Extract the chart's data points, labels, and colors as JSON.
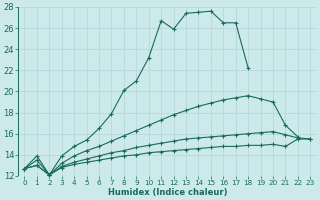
{
  "xlabel": "Humidex (Indice chaleur)",
  "bg_color": "#cce9ec",
  "grid_color": "#b8d8db",
  "line_color": "#1a6b5a",
  "xlim": [
    -0.5,
    23.5
  ],
  "ylim": [
    12,
    28
  ],
  "xticks": [
    0,
    1,
    2,
    3,
    4,
    5,
    6,
    7,
    8,
    9,
    10,
    11,
    12,
    13,
    14,
    15,
    16,
    17,
    18,
    19,
    20,
    21,
    22,
    23
  ],
  "yticks": [
    12,
    14,
    16,
    18,
    20,
    22,
    24,
    26,
    28
  ],
  "series": [
    {
      "x": [
        0,
        1,
        2,
        3,
        4,
        5,
        6,
        7,
        8,
        9,
        10,
        11,
        12,
        13,
        14,
        15,
        16,
        17,
        18
      ],
      "y": [
        12.7,
        13.9,
        12.1,
        13.9,
        14.8,
        15.4,
        16.5,
        17.9,
        20.1,
        21.0,
        23.2,
        26.7,
        25.9,
        27.4,
        27.5,
        27.6,
        26.5,
        26.5,
        22.2
      ]
    },
    {
      "x": [
        0,
        1,
        2,
        3,
        4,
        5,
        6,
        7,
        8,
        9,
        10,
        11,
        12,
        13,
        14,
        15,
        16,
        17,
        18,
        19,
        20,
        21,
        22
      ],
      "y": [
        12.7,
        13.5,
        12.1,
        13.2,
        13.9,
        14.4,
        14.8,
        15.3,
        15.8,
        16.3,
        16.8,
        17.3,
        17.8,
        18.2,
        18.6,
        18.9,
        19.2,
        19.4,
        19.6,
        19.3,
        19.0,
        16.8,
        15.7
      ]
    },
    {
      "x": [
        0,
        1,
        2,
        3,
        4,
        5,
        6,
        7,
        8,
        9,
        10,
        11,
        12,
        13,
        14,
        15,
        16,
        17,
        18,
        19,
        20,
        21,
        22,
        23
      ],
      "y": [
        12.7,
        13.0,
        12.1,
        12.9,
        13.3,
        13.6,
        13.9,
        14.2,
        14.4,
        14.7,
        14.9,
        15.1,
        15.3,
        15.5,
        15.6,
        15.7,
        15.8,
        15.9,
        16.0,
        16.1,
        16.2,
        15.9,
        15.6,
        15.5
      ]
    },
    {
      "x": [
        0,
        1,
        2,
        3,
        4,
        5,
        6,
        7,
        8,
        9,
        10,
        11,
        12,
        13,
        14,
        15,
        16,
        17,
        18,
        19,
        20,
        21,
        22,
        23
      ],
      "y": [
        12.7,
        13.0,
        12.1,
        12.8,
        13.1,
        13.3,
        13.5,
        13.7,
        13.9,
        14.0,
        14.2,
        14.3,
        14.4,
        14.5,
        14.6,
        14.7,
        14.8,
        14.8,
        14.9,
        14.9,
        15.0,
        14.8,
        15.5,
        15.5
      ]
    }
  ]
}
